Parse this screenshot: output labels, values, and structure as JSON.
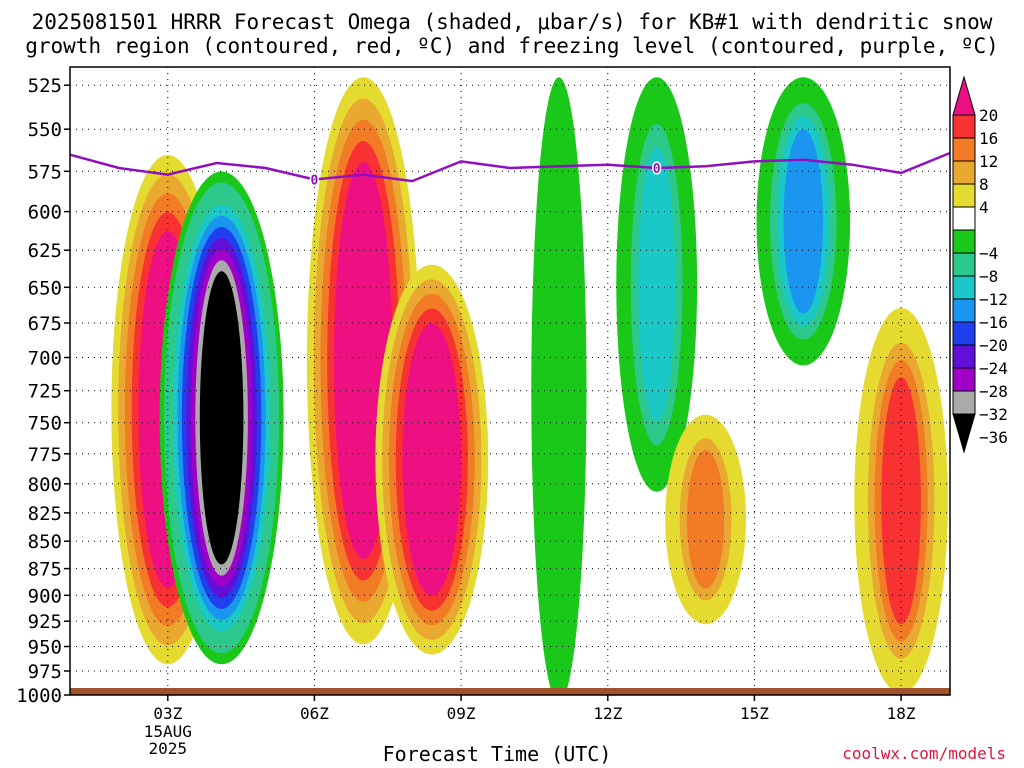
{
  "title_line1": "2025081501 HRRR Forecast Omega (shaded, μbar/s) for KB#1 with dendritic snow",
  "title_line2": "growth region (contoured, red, ºC) and freezing level (contoured, purple, ºC)",
  "credit": "coolwx.com/models",
  "chart_data": {
    "type": "heatmap",
    "title": "2025081501 HRRR Forecast Omega (shaded, μbar/s) for KB#1 with dendritic snow growth region (contoured, red, ºC) and freezing level (contoured, purple, ºC)",
    "xlabel": "Forecast Time (UTC)",
    "ylabel": "",
    "x_ticks": [
      "03Z",
      "06Z",
      "09Z",
      "12Z",
      "15Z",
      "18Z"
    ],
    "x_tick_hours": [
      3,
      6,
      9,
      12,
      15,
      18
    ],
    "x_date_labels": [
      "15AUG",
      "2025"
    ],
    "xlim_hours": [
      1.0,
      19.0
    ],
    "y_ticks": [
      525,
      550,
      575,
      600,
      625,
      650,
      675,
      700,
      725,
      750,
      775,
      800,
      825,
      850,
      875,
      900,
      925,
      950,
      975,
      1000
    ],
    "ylim_hpa": [
      1000,
      515
    ],
    "y_scale": "log-pressure (inverted)",
    "grid": true,
    "colorbar": {
      "labels": [
        "20",
        "16",
        "12",
        "8",
        "4",
        "−4",
        "−8",
        "−12",
        "−16",
        "−20",
        "−24",
        "−28",
        "−32",
        "−36"
      ],
      "bins": [
        {
          "range": ">20",
          "color": "#ee0f83"
        },
        {
          "range": "16-20",
          "color": "#f83232"
        },
        {
          "range": "12-16",
          "color": "#f27b25"
        },
        {
          "range": "8-12",
          "color": "#e9a830"
        },
        {
          "range": "4-8",
          "color": "#e5da30"
        },
        {
          "range": "-4-4",
          "color": "#ffffff"
        },
        {
          "range": "-8--4",
          "color": "#19c819"
        },
        {
          "range": "-12--8",
          "color": "#2cc88c"
        },
        {
          "range": "-16--12",
          "color": "#1ac8c8"
        },
        {
          "range": "-20--16",
          "color": "#1a96f0"
        },
        {
          "range": "-24--20",
          "color": "#2040f0"
        },
        {
          "range": "-28--24",
          "color": "#6010d8"
        },
        {
          "range": "-32--28",
          "color": "#a000c8"
        },
        {
          "range": "-36--32",
          "color": "#aaaaaa"
        },
        {
          "range": "<-36",
          "color": "#000000"
        }
      ]
    },
    "freezing_level": {
      "label": "0",
      "color": "#9010c0",
      "points": [
        [
          1.0,
          565
        ],
        [
          2.0,
          573
        ],
        [
          3.0,
          577
        ],
        [
          4.0,
          570
        ],
        [
          5.0,
          573
        ],
        [
          6.0,
          580
        ],
        [
          7.0,
          577
        ],
        [
          8.0,
          581
        ],
        [
          9.0,
          569
        ],
        [
          10.0,
          573
        ],
        [
          11.0,
          572
        ],
        [
          12.0,
          571
        ],
        [
          13.0,
          573
        ],
        [
          14.0,
          572
        ],
        [
          15.0,
          569
        ],
        [
          16.0,
          568
        ],
        [
          17.0,
          571
        ],
        [
          18.0,
          576
        ],
        [
          19.0,
          564
        ]
      ]
    },
    "omega_features": [
      {
        "value": 24,
        "hour": 3.0,
        "p": [
          570,
          960
        ],
        "desc": "strong upward motion column"
      },
      {
        "value": -38,
        "hour": 4.1,
        "p": [
          580,
          960
        ],
        "desc": "strong descending core"
      },
      {
        "value": 24,
        "hour": 7.0,
        "p": [
          525,
          940
        ],
        "desc": "strong upward motion column"
      },
      {
        "value": 24,
        "hour": 8.4,
        "p": [
          640,
          950
        ],
        "desc": "upward motion"
      },
      {
        "value": -6,
        "hour": 11.0,
        "p": [
          525,
          1000
        ],
        "desc": "weak subsidence"
      },
      {
        "value": -14,
        "hour": 13.0,
        "p": [
          525,
          800
        ],
        "desc": "moderate subsidence"
      },
      {
        "value": -18,
        "hour": 16.0,
        "p": [
          525,
          700
        ],
        "desc": "moderate subsidence"
      },
      {
        "value": 14,
        "hour": 14.0,
        "p": [
          750,
          920
        ],
        "desc": "weak upward motion"
      },
      {
        "value": 18,
        "hour": 18.0,
        "p": [
          670,
          990
        ],
        "desc": "upward motion"
      }
    ]
  }
}
